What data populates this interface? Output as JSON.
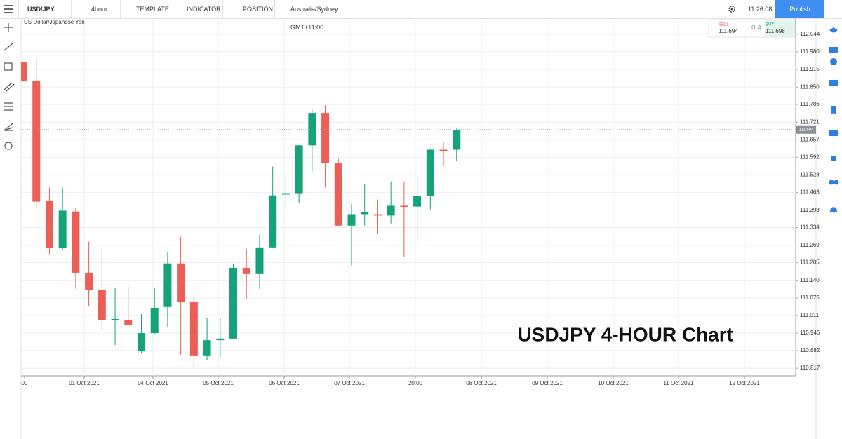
{
  "toolbar": {
    "symbol": "USD/JPY",
    "interval": "4hour",
    "template": "TEMPLATE",
    "indicator": "INDICATOR",
    "position": "POSITION",
    "timezone": "Australia/Sydney GMT+11:00",
    "clock": "11:26:08",
    "publish": "Publish"
  },
  "quote": {
    "sell_label": "SELL",
    "sell": "111.694",
    "spread": "0.4",
    "buy_label": "BUY",
    "buy": "111.698"
  },
  "chart_data": {
    "type": "candlestick",
    "subtitle": "US Dollar/Japanese Yen",
    "title": "USDJPY 4-HOUR Chart",
    "up_color": "#14a37a",
    "down_color": "#ec5f57",
    "grid": true,
    "ylim": [
      110.789,
      112.098
    ],
    "yticks": [
      112.044,
      {
        "value": 111.98,
        "label": "111.980"
      },
      111.915,
      {
        "value": 111.85,
        "label": "111.850"
      },
      111.786,
      111.721,
      111.657,
      111.592,
      111.528,
      111.463,
      111.398,
      111.334,
      111.269,
      111.205,
      {
        "value": 111.14,
        "label": "111.140"
      },
      111.075,
      111.011,
      110.946,
      110.882,
      110.817
    ],
    "xtick_labels": [
      "00",
      "01 Oct 2021",
      "04 Oct 2021",
      "05 Oct 2021",
      "06 Oct 2021",
      "07 Oct 2021",
      "20:00",
      "08 Oct 2021",
      "09 Oct 2021",
      "10 Oct 2021",
      "11 Oct 2021",
      "12 Oct 2021"
    ],
    "current_price": 111.694,
    "current_price_label": "111.694",
    "open": [
      111.943,
      111.874,
      111.432,
      111.259,
      111.393,
      111.168,
      111.106,
      110.993,
      110.995,
      110.879,
      110.946,
      111.042,
      111.202,
      111.06,
      110.864,
      110.92,
      110.926,
      111.186,
      111.163,
      111.261,
      111.455,
      111.46,
      111.636,
      111.755,
      111.571,
      111.341,
      111.383,
      111.383,
      111.378,
      111.414,
      111.411,
      111.45,
      111.62,
      111.62
    ],
    "high": [
      111.943,
      111.959,
      111.481,
      111.481,
      111.406,
      111.282,
      111.259,
      111.114,
      111.117,
      111.016,
      111.112,
      111.246,
      111.3,
      111.088,
      111.001,
      111.001,
      111.202,
      111.256,
      111.308,
      111.558,
      111.525,
      111.636,
      111.768,
      111.783,
      111.587,
      111.421,
      111.494,
      111.437,
      111.504,
      111.504,
      111.525,
      111.623,
      111.646,
      111.698
    ],
    "low": [
      111.871,
      111.406,
      111.236,
      111.251,
      111.109,
      111.044,
      110.957,
      110.902,
      110.977,
      110.874,
      110.944,
      110.967,
      110.866,
      110.817,
      110.848,
      110.856,
      110.923,
      111.073,
      111.109,
      111.259,
      111.406,
      111.424,
      111.54,
      111.481,
      111.341,
      111.194,
      111.341,
      111.31,
      111.349,
      111.225,
      111.279,
      111.401,
      111.558,
      111.577
    ],
    "close": [
      111.871,
      111.429,
      111.259,
      111.396,
      111.168,
      111.106,
      110.993,
      110.998,
      110.977,
      110.946,
      111.039,
      111.202,
      111.06,
      110.864,
      110.92,
      110.926,
      111.186,
      111.163,
      111.261,
      111.452,
      111.46,
      111.636,
      111.755,
      111.571,
      111.341,
      111.383,
      111.391,
      111.378,
      111.414,
      111.411,
      111.45,
      111.62,
      111.618,
      111.693
    ]
  }
}
